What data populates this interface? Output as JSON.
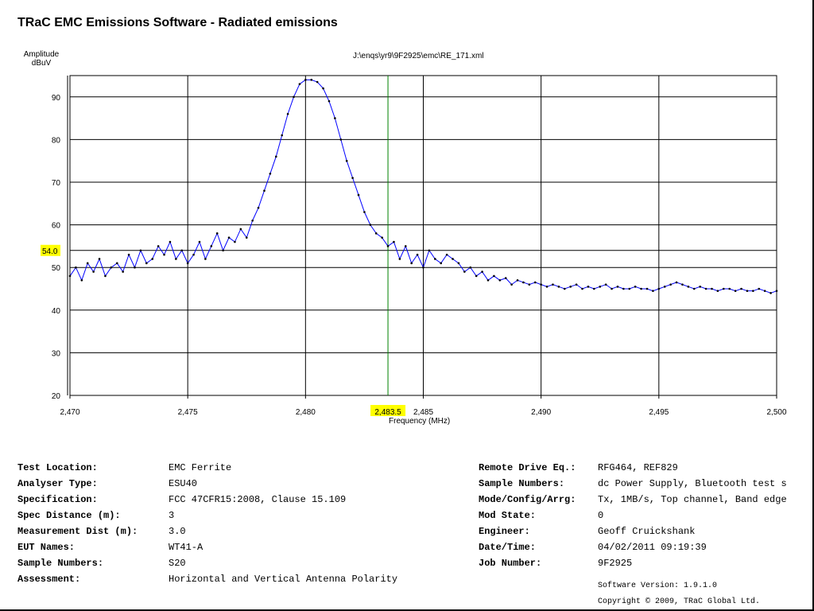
{
  "title": "TRaC EMC Emissions Software - Radiated emissions",
  "chart_data": {
    "type": "line",
    "title": "J:\\enqs\\yr9\\9F2925\\emc\\RE_171.xml",
    "ylabel_line1": "Amplitude",
    "ylabel_line2": "dBuV",
    "xlabel": "Frequency (MHz)",
    "xlim": [
      2470,
      2500
    ],
    "ylim": [
      20,
      95
    ],
    "xticks": [
      2470,
      2475,
      2480,
      2485,
      2490,
      2495,
      2500
    ],
    "xtick_labels": [
      "2,470",
      "2,475",
      "2,480",
      "2,485",
      "2,490",
      "2,495",
      "2,500"
    ],
    "yticks": [
      20,
      30,
      40,
      50,
      60,
      70,
      80,
      90
    ],
    "ytick_labels": [
      "20",
      "30",
      "40",
      "50",
      "60",
      "70",
      "80",
      "90"
    ],
    "grid": true,
    "limit_line": {
      "value": 54.0,
      "label": "54.0"
    },
    "frequency_marker": {
      "value": 2483.5,
      "label": "2,483.5"
    },
    "series": [
      {
        "name": "trace",
        "x_start": 2470,
        "x_step": 0.25,
        "values": [
          48,
          50,
          47,
          51,
          49,
          52,
          48,
          50,
          51,
          49,
          53,
          50,
          54,
          51,
          52,
          55,
          53,
          56,
          52,
          54,
          51,
          53,
          56,
          52,
          55,
          58,
          54,
          57,
          56,
          59,
          57,
          61,
          64,
          68,
          72,
          76,
          81,
          86,
          90,
          93,
          94,
          94,
          93.5,
          92,
          89,
          85,
          80,
          75,
          71,
          67,
          63,
          60,
          58,
          57,
          55,
          56,
          52,
          55,
          51,
          53,
          50,
          54,
          52,
          51,
          53,
          52,
          51,
          49,
          50,
          48,
          49,
          47,
          48,
          47,
          47.5,
          46,
          47,
          46.5,
          46,
          46.5,
          46,
          45.5,
          46,
          45.5,
          45,
          45.5,
          46,
          45,
          45.5,
          45,
          45.5,
          46,
          45,
          45.5,
          45,
          45,
          45.5,
          45,
          45,
          44.5,
          45,
          45.5,
          46,
          46.5,
          46,
          45.5,
          45,
          45.5,
          45,
          45,
          44.5,
          45,
          45,
          44.5,
          45,
          44.5,
          44.5,
          45,
          44.5,
          44,
          44.5
        ]
      }
    ]
  },
  "info_left": [
    {
      "label": "Test Location:",
      "value": "EMC Ferrite"
    },
    {
      "label": "Analyser Type:",
      "value": "ESU40"
    },
    {
      "label": "Specification:",
      "value": "FCC 47CFR15:2008, Clause 15.109"
    },
    {
      "label": "Spec Distance (m):",
      "value": "3"
    },
    {
      "label": "Measurement Dist (m):",
      "value": "3.0"
    },
    {
      "label": "EUT Names:",
      "value": "WT41-A"
    },
    {
      "label": "Sample Numbers:",
      "value": "S20"
    },
    {
      "label": "Assessment:",
      "value": "Horizontal and Vertical Antenna Polarity"
    }
  ],
  "info_right": [
    {
      "label": "Remote Drive Eq.:",
      "value": "RFG464, REF829"
    },
    {
      "label": "Sample Numbers:",
      "value": "dc Power Supply, Bluetooth test s"
    },
    {
      "label": "Mode/Config/Arrg:",
      "value": "Tx, 1MB/s, Top channel, Band edge"
    },
    {
      "label": "Mod State:",
      "value": "0"
    },
    {
      "label": "Engineer:",
      "value": "Geoff Cruickshank"
    },
    {
      "label": "Date/Time:",
      "value": "04/02/2011 09:19:39"
    },
    {
      "label": "Job Number:",
      "value": "9F2925"
    }
  ],
  "software_version": "Software Version: 1.9.1.0",
  "copyright": "Copyright © 2009, TRaC Global Ltd.",
  "colors": {
    "trace": "#0000ff",
    "marker": "#008000",
    "highlight": "#ffff00"
  }
}
